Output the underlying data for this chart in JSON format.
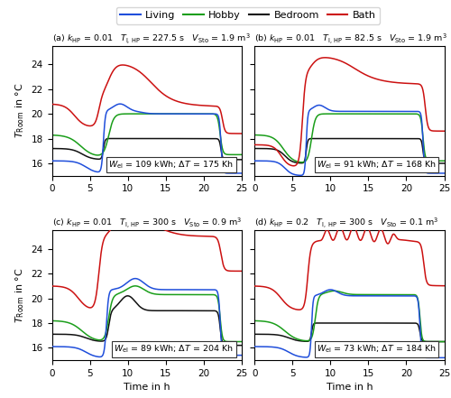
{
  "legend": {
    "living": {
      "label": "Living",
      "color": "#1f4edb"
    },
    "hobby": {
      "label": "Hobby",
      "color": "#1a9e1a"
    },
    "bedroom": {
      "label": "Bedroom",
      "color": "#111111"
    },
    "bath": {
      "label": "Bath",
      "color": "#cc1111"
    }
  },
  "subplots": [
    {
      "label": "(a)",
      "k_hp": "0.01",
      "T_i": "227.5",
      "V_sto": "1.9",
      "annotation": "W_el = 109 kWh; ΔT = 175 Kh"
    },
    {
      "label": "(b)",
      "k_hp": "0.01",
      "T_i": "82.5",
      "V_sto": "1.9",
      "annotation": "W_el = 91 kWh; ΔT = 168 Kh"
    },
    {
      "label": "(c)",
      "k_hp": "0.01",
      "T_i": "300",
      "V_sto": "0.9",
      "annotation": "W_el = 89 kWh; ΔT = 204 Kh"
    },
    {
      "label": "(d)",
      "k_hp": "0.2",
      "T_i": "300",
      "V_sto": "0.1",
      "annotation": "W_el = 73 kWh; ΔT = 184 Kh"
    }
  ],
  "xlim": [
    0,
    25
  ],
  "ylim": [
    15.0,
    25.5
  ],
  "yticks": [
    16,
    18,
    20,
    22,
    24
  ],
  "xticks": [
    0,
    5,
    10,
    15,
    20,
    25
  ],
  "xlabel": "Time in h",
  "ylabel": "$T_{\\mathrm{Room}}$ in °C"
}
